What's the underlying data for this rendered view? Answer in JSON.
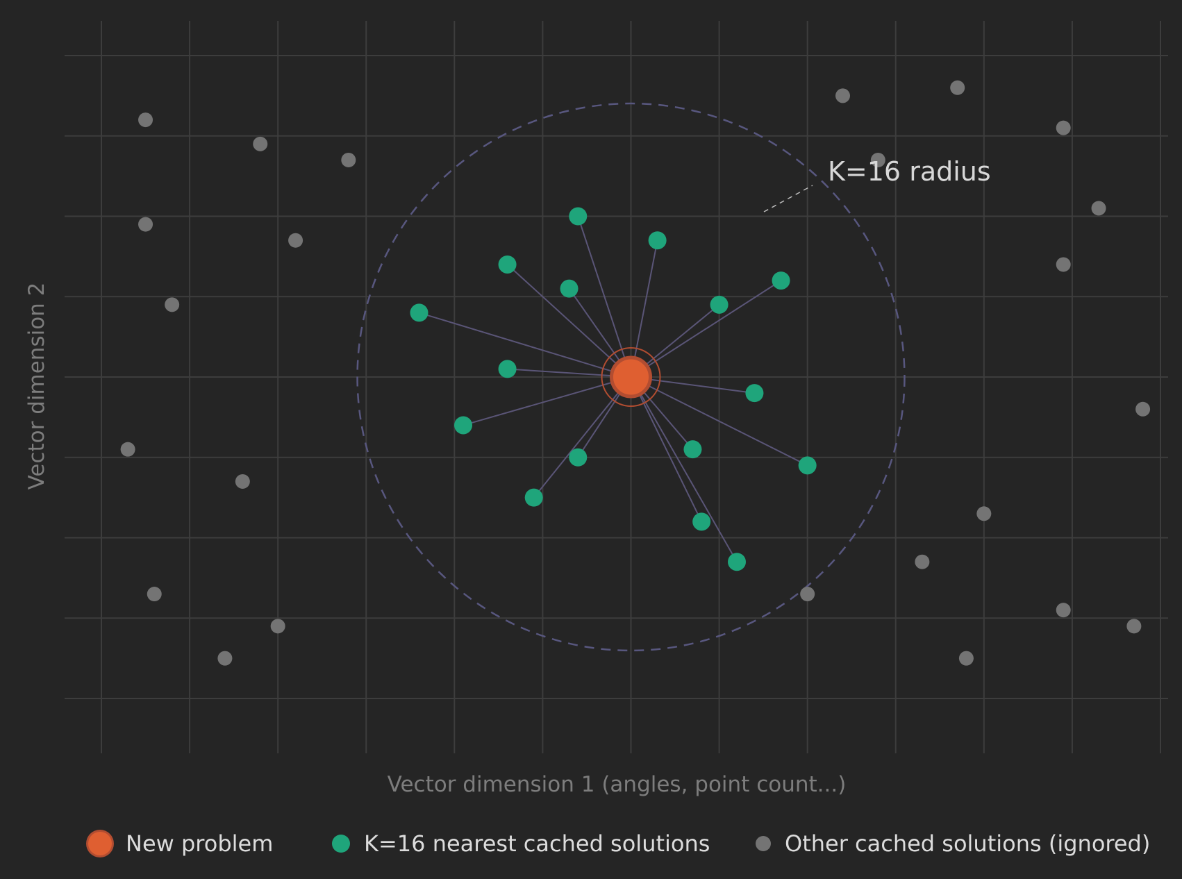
{
  "chart_data": {
    "type": "scatter",
    "title": "",
    "xlabel": "Vector dimension 1 (angles, point count...)",
    "ylabel": "Vector dimension 2",
    "xlim": [
      0,
      12
    ],
    "ylim": [
      0,
      8
    ],
    "grid": true,
    "legend_placement": "bottom",
    "colors": {
      "background": "#252525",
      "grid": "#3d3d3d",
      "query": "#df5f31",
      "query_ring": "#b24d31",
      "neighbor": "#1fa57b",
      "other": "#747474",
      "link": "#5a5577",
      "radius_circle": "#58577f",
      "annotation_line": "#bcbcbc"
    },
    "query_point": {
      "name": "New problem",
      "x": 6.0,
      "y": 4.0
    },
    "neighbors": {
      "name": "K=16 nearest cached solutions",
      "points": [
        {
          "x": 5.4,
          "y": 6.0
        },
        {
          "x": 6.3,
          "y": 5.7
        },
        {
          "x": 4.6,
          "y": 5.4
        },
        {
          "x": 5.3,
          "y": 5.1
        },
        {
          "x": 7.7,
          "y": 5.2
        },
        {
          "x": 7.0,
          "y": 4.9
        },
        {
          "x": 3.6,
          "y": 4.8
        },
        {
          "x": 4.6,
          "y": 4.1
        },
        {
          "x": 7.4,
          "y": 3.8
        },
        {
          "x": 4.1,
          "y": 3.4
        },
        {
          "x": 6.7,
          "y": 3.1
        },
        {
          "x": 5.4,
          "y": 3.0
        },
        {
          "x": 8.0,
          "y": 2.9
        },
        {
          "x": 4.9,
          "y": 2.5
        },
        {
          "x": 6.8,
          "y": 2.2
        },
        {
          "x": 7.2,
          "y": 1.7
        }
      ]
    },
    "others": {
      "name": "Other cached solutions (ignored)",
      "points": [
        {
          "x": 0.5,
          "y": 7.2
        },
        {
          "x": 1.8,
          "y": 6.9
        },
        {
          "x": 2.8,
          "y": 6.7
        },
        {
          "x": 0.5,
          "y": 5.9
        },
        {
          "x": 2.2,
          "y": 5.7
        },
        {
          "x": 0.8,
          "y": 4.9
        },
        {
          "x": 0.3,
          "y": 3.1
        },
        {
          "x": 1.6,
          "y": 2.7
        },
        {
          "x": 0.6,
          "y": 1.3
        },
        {
          "x": 2.0,
          "y": 0.9
        },
        {
          "x": 1.4,
          "y": 0.5
        },
        {
          "x": 8.4,
          "y": 7.5
        },
        {
          "x": 9.7,
          "y": 7.6
        },
        {
          "x": 10.9,
          "y": 7.1
        },
        {
          "x": 8.8,
          "y": 6.7
        },
        {
          "x": 11.3,
          "y": 6.1
        },
        {
          "x": 10.9,
          "y": 5.4
        },
        {
          "x": 11.8,
          "y": 3.6
        },
        {
          "x": 9.3,
          "y": 1.7
        },
        {
          "x": 8.0,
          "y": 1.3
        },
        {
          "x": 10.0,
          "y": 2.3
        },
        {
          "x": 10.9,
          "y": 1.1
        },
        {
          "x": 11.7,
          "y": 0.9
        },
        {
          "x": 9.8,
          "y": 0.5
        }
      ]
    },
    "radius_circle": {
      "center_x": 6.0,
      "center_y": 4.0,
      "radius": 3.1
    },
    "annotation": {
      "label": "K=16 radius"
    },
    "legend": [
      {
        "label": "New problem",
        "type": "query"
      },
      {
        "label": "K=16 nearest cached solutions",
        "type": "neighbor"
      },
      {
        "label": "Other cached solutions (ignored)",
        "type": "other"
      }
    ]
  }
}
